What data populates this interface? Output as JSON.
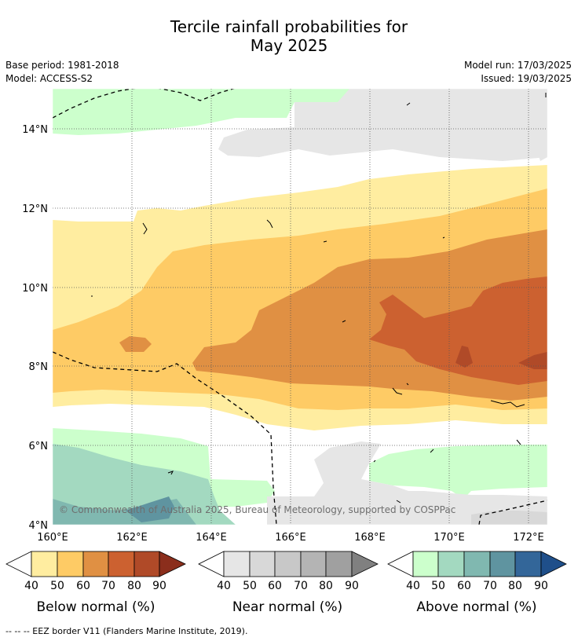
{
  "header": {
    "title_line1": "Tercile rainfall probabilities for",
    "title_line2": "May 2025",
    "base_period": "Base period: 1981-2018",
    "model": "Model: ACCESS-S2",
    "model_run": "Model run: 17/03/2025",
    "issued": "Issued: 19/03/2025"
  },
  "map": {
    "lat_labels": [
      "14°N",
      "12°N",
      "10°N",
      "8°N",
      "6°N",
      "4°N"
    ],
    "lon_labels": [
      "160°E",
      "162°E",
      "164°E",
      "166°E",
      "168°E",
      "170°E",
      "172°E"
    ],
    "copyright": "© Commonwealth of Australia 2025, Bureau of Meteorology, supported by COSPPac",
    "layer_colors": {
      "below_40": "#ffeda0",
      "below_50": "#fecb65",
      "below_60": "#e09043",
      "below_70": "#cc6130",
      "near_40": "#e6e6e6",
      "near_50": "#d8d8d8",
      "above_40": "#ccffcc",
      "above_50": "#a3d9c0",
      "above_60": "#80b8b0",
      "above_70": "#5f94a0"
    }
  },
  "colorbars": [
    {
      "label": "Below normal (%)",
      "ticks": [
        "40",
        "50",
        "60",
        "70",
        "80",
        "90"
      ],
      "colors": [
        "#ffeda0",
        "#fecb65",
        "#e09043",
        "#cc6130",
        "#b04a28",
        "#8b2e1c"
      ]
    },
    {
      "label": "Near normal (%)",
      "ticks": [
        "40",
        "50",
        "60",
        "70",
        "80",
        "90"
      ],
      "colors": [
        "#e6e6e6",
        "#d8d8d8",
        "#c8c8c8",
        "#b4b4b4",
        "#a0a0a0",
        "#808080"
      ]
    },
    {
      "label": "Above normal (%)",
      "ticks": [
        "40",
        "50",
        "60",
        "70",
        "80",
        "90"
      ],
      "colors": [
        "#ccffcc",
        "#a3d9c0",
        "#80b8b0",
        "#5f94a0",
        "#336699",
        "#1f4f8a"
      ]
    }
  ],
  "footnote": "-- -- -- EEZ border V11 (Flanders Marine Institute, 2019)."
}
